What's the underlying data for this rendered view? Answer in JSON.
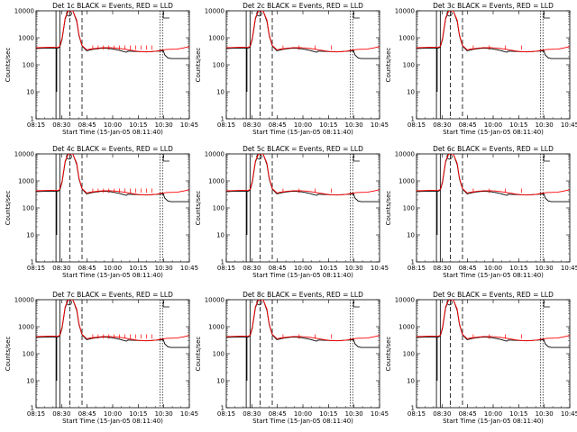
{
  "chart_data": {
    "type": "line",
    "grid": false,
    "ylabel": "Counts/sec",
    "xlabel": "Start Time (15-Jan-05 08:11:40)",
    "y_scale": "log",
    "ylim": [
      1,
      10000
    ],
    "y_ticks": [
      1,
      10,
      100,
      1000,
      10000
    ],
    "x_tick_labels": [
      "08:15",
      "08:30",
      "08:45",
      "10:00",
      "10:15",
      "10:30",
      "10:45"
    ],
    "series": [
      {
        "name": "Events",
        "color": "#000000"
      },
      {
        "name": "LLD",
        "color": "#ff0000"
      }
    ],
    "panels": [
      {
        "title": "Det 1c BLACK = Events, RED = LLD"
      },
      {
        "title": "Det 2c BLACK = Events, RED = LLD"
      },
      {
        "title": "Det 3c BLACK = Events, RED = LLD"
      },
      {
        "title": "Det 4c BLACK = Events, RED = LLD"
      },
      {
        "title": "Det 5c BLACK = Events, RED = LLD"
      },
      {
        "title": "Det 6c BLACK = Events, RED = LLD"
      },
      {
        "title": "Det 7c BLACK = Events, RED = LLD"
      },
      {
        "title": "Det 8c BLACK = Events, RED = LLD"
      },
      {
        "title": "Det 9c BLACK = Events, RED = LLD"
      }
    ]
  }
}
